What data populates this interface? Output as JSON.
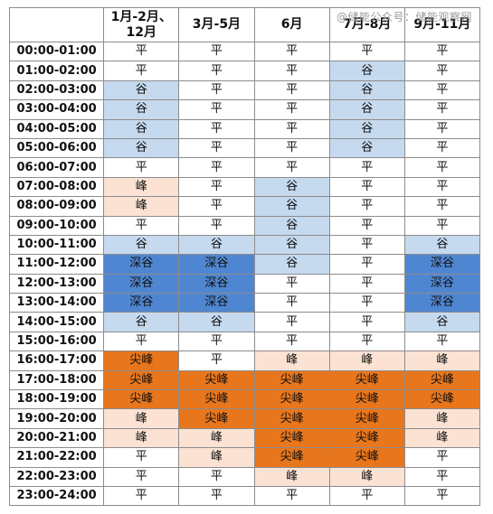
{
  "watermark": "@储能公众号：储能观察网",
  "header": [
    "",
    "1月-2月、12月",
    "3月-5月",
    "6月",
    "7月-8月",
    "9月-11月"
  ],
  "legend_colors": {
    "平": "#ffffff",
    "谷": "#c5d9ef",
    "深谷": "#4f86d1",
    "峰": "#fbe2d3",
    "尖峰": "#e8761c"
  },
  "rows": [
    {
      "time": "00:00-01:00",
      "cells": [
        "平",
        "平",
        "平",
        "平",
        "平"
      ]
    },
    {
      "time": "01:00-02:00",
      "cells": [
        "平",
        "平",
        "平",
        "谷",
        "平"
      ]
    },
    {
      "time": "02:00-03:00",
      "cells": [
        "谷",
        "平",
        "平",
        "谷",
        "平"
      ]
    },
    {
      "time": "03:00-04:00",
      "cells": [
        "谷",
        "平",
        "平",
        "谷",
        "平"
      ]
    },
    {
      "time": "04:00-05:00",
      "cells": [
        "谷",
        "平",
        "平",
        "谷",
        "平"
      ]
    },
    {
      "time": "05:00-06:00",
      "cells": [
        "谷",
        "平",
        "平",
        "谷",
        "平"
      ]
    },
    {
      "time": "06:00-07:00",
      "cells": [
        "平",
        "平",
        "平",
        "平",
        "平"
      ]
    },
    {
      "time": "07:00-08:00",
      "cells": [
        "峰",
        "平",
        "谷",
        "平",
        "平"
      ]
    },
    {
      "time": "08:00-09:00",
      "cells": [
        "峰",
        "平",
        "谷",
        "平",
        "平"
      ]
    },
    {
      "time": "09:00-10:00",
      "cells": [
        "平",
        "平",
        "谷",
        "平",
        "平"
      ]
    },
    {
      "time": "10:00-11:00",
      "cells": [
        "谷",
        "谷",
        "谷",
        "平",
        "谷"
      ]
    },
    {
      "time": "11:00-12:00",
      "cells": [
        "深谷",
        "深谷",
        "谷",
        "平",
        "深谷"
      ]
    },
    {
      "time": "12:00-13:00",
      "cells": [
        "深谷",
        "深谷",
        "平",
        "平",
        "深谷"
      ]
    },
    {
      "time": "13:00-14:00",
      "cells": [
        "深谷",
        "深谷",
        "平",
        "平",
        "深谷"
      ]
    },
    {
      "time": "14:00-15:00",
      "cells": [
        "谷",
        "谷",
        "平",
        "平",
        "谷"
      ]
    },
    {
      "time": "15:00-16:00",
      "cells": [
        "平",
        "平",
        "平",
        "平",
        "平"
      ]
    },
    {
      "time": "16:00-17:00",
      "cells": [
        "尖峰",
        "平",
        "峰",
        "峰",
        "峰"
      ]
    },
    {
      "time": "17:00-18:00",
      "cells": [
        "尖峰",
        "尖峰",
        "尖峰",
        "尖峰",
        "尖峰"
      ]
    },
    {
      "time": "18:00-19:00",
      "cells": [
        "尖峰",
        "尖峰",
        "尖峰",
        "尖峰",
        "尖峰"
      ]
    },
    {
      "time": "19:00-20:00",
      "cells": [
        "峰",
        "尖峰",
        "尖峰",
        "尖峰",
        "峰"
      ]
    },
    {
      "time": "20:00-21:00",
      "cells": [
        "峰",
        "峰",
        "尖峰",
        "尖峰",
        "峰"
      ]
    },
    {
      "time": "21:00-22:00",
      "cells": [
        "平",
        "峰",
        "尖峰",
        "尖峰",
        "平"
      ]
    },
    {
      "time": "22:00-23:00",
      "cells": [
        "平",
        "平",
        "峰",
        "峰",
        "平"
      ]
    },
    {
      "time": "23:00-24:00",
      "cells": [
        "平",
        "平",
        "平",
        "平",
        "平"
      ]
    }
  ]
}
